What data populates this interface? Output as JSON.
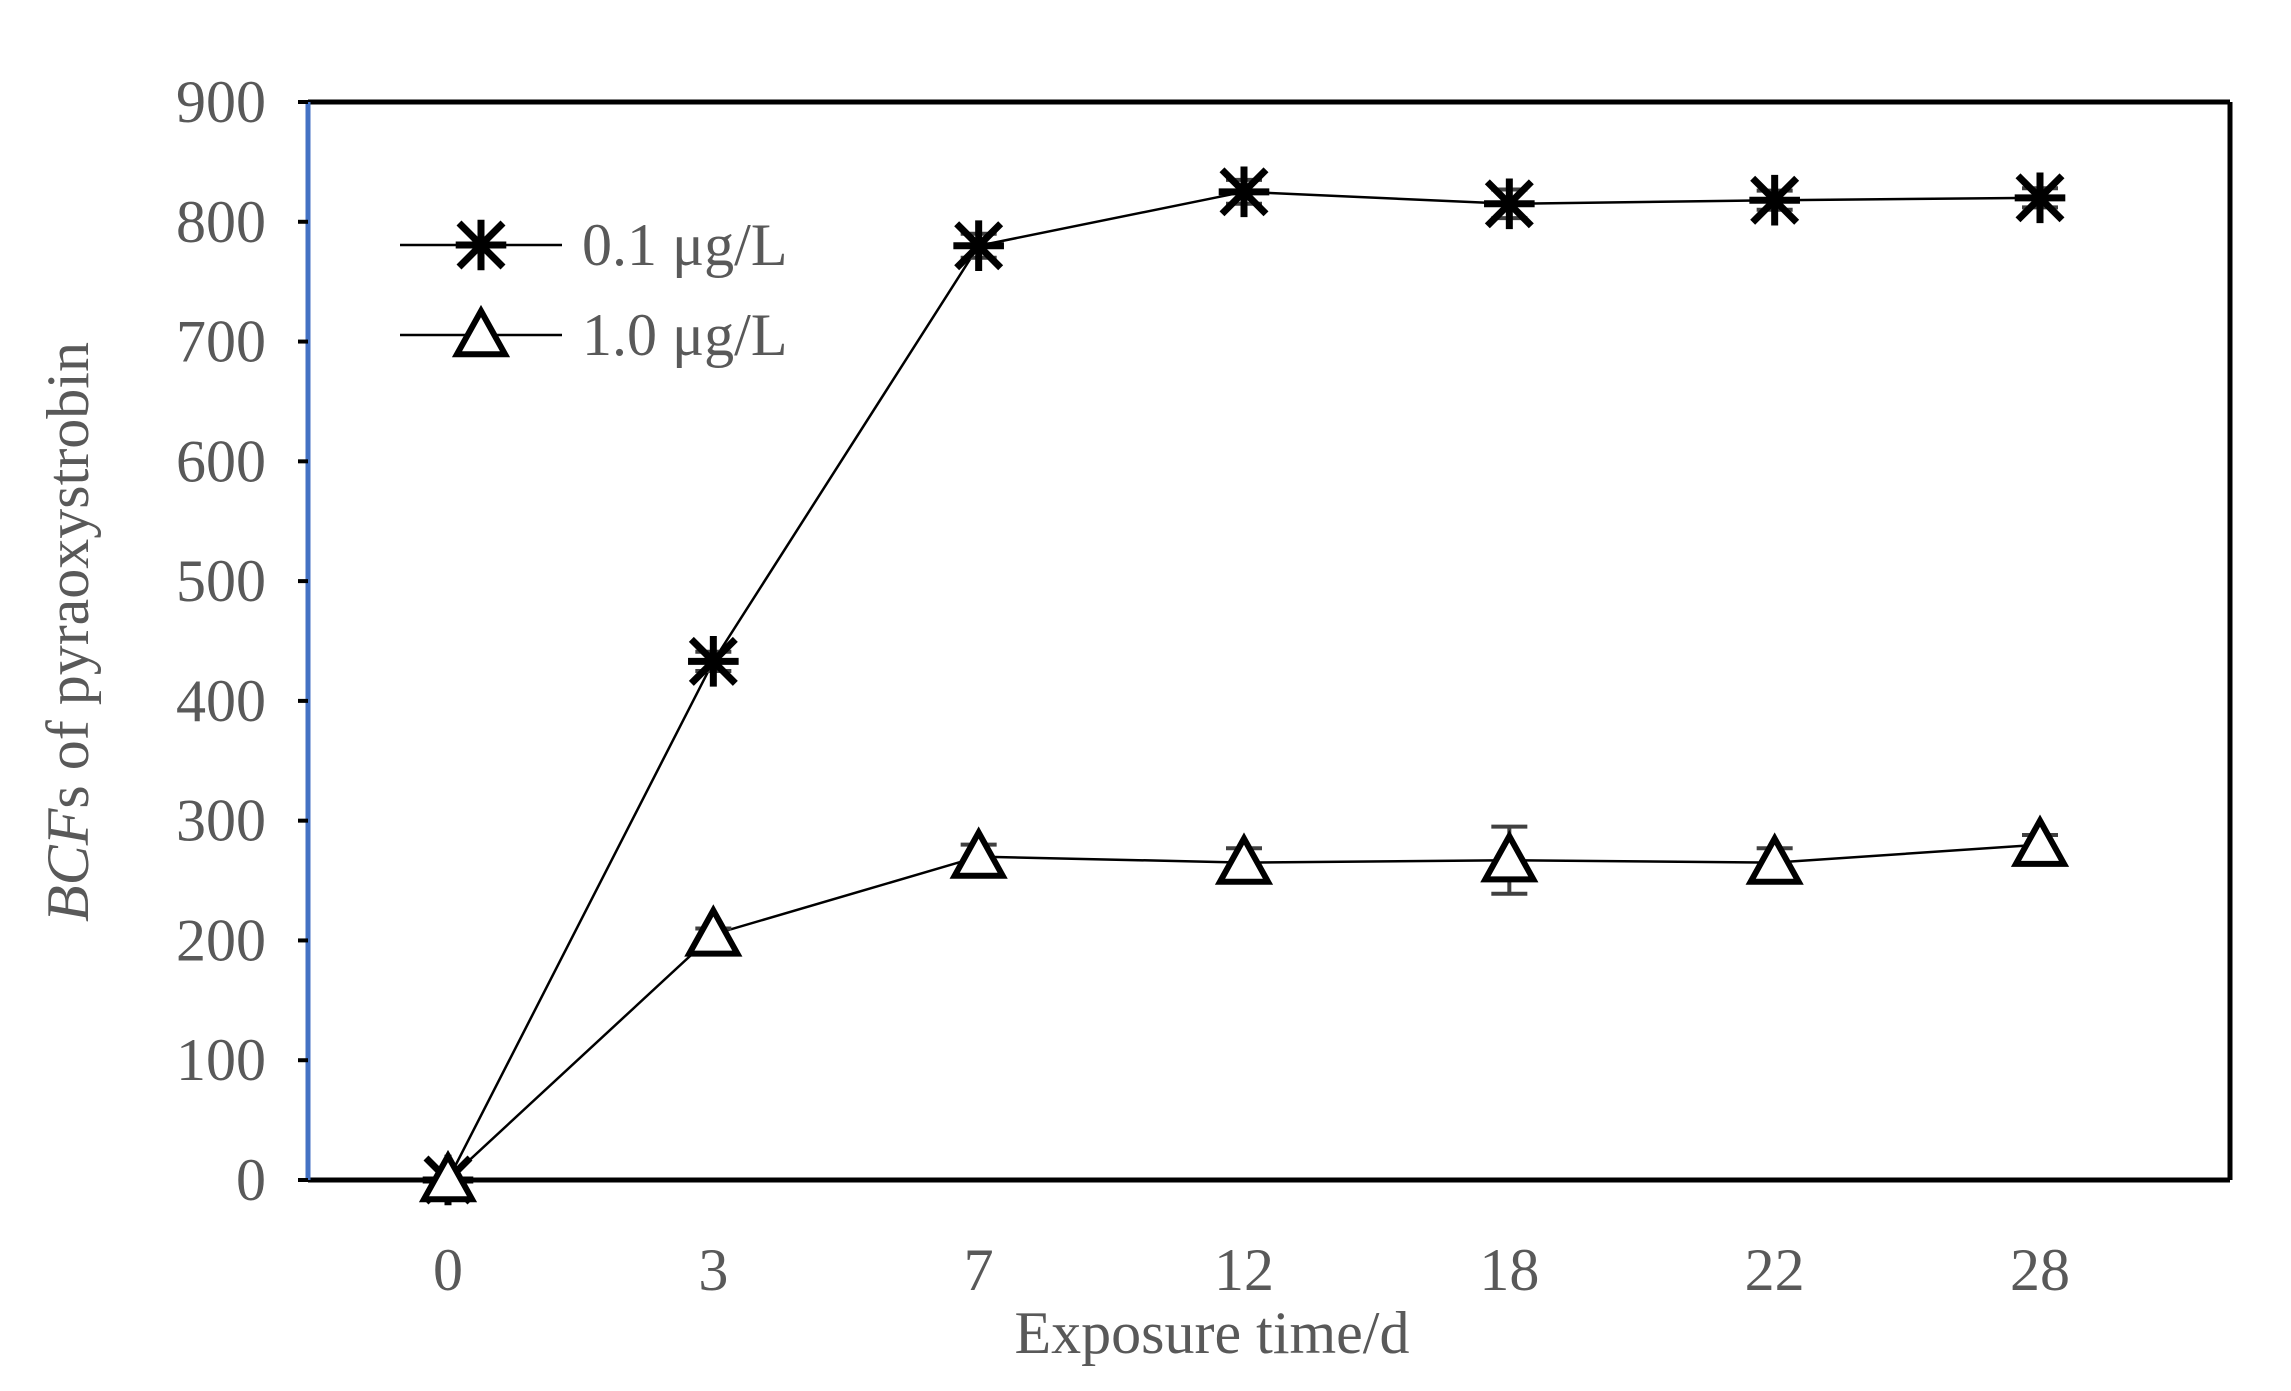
{
  "chart_data": {
    "type": "line",
    "xlabel": "Exposure time/d",
    "ylabel_italic": "BCF",
    "ylabel_rest": "s of pyraoxystrobin",
    "categories": [
      "0",
      "3",
      "7",
      "12",
      "18",
      "22",
      "28"
    ],
    "ylim": [
      0,
      900
    ],
    "yticks": [
      0,
      100,
      200,
      300,
      400,
      500,
      600,
      700,
      800,
      900
    ],
    "grid": false,
    "legend_position": "top-left",
    "series": [
      {
        "name": "0.1 μg/L",
        "marker": "asterisk",
        "values": [
          0,
          433,
          780,
          825,
          815,
          818,
          820
        ],
        "errors": [
          0,
          8,
          10,
          10,
          12,
          8,
          8
        ]
      },
      {
        "name": "1.0 μg/L",
        "marker": "triangle",
        "values": [
          0,
          205,
          270,
          265,
          267,
          265,
          280
        ],
        "errors": [
          0,
          5,
          10,
          12,
          28,
          12,
          8
        ]
      }
    ]
  },
  "colors": {
    "text": "#595959",
    "line": "#000000",
    "left_axis": "#4472C4",
    "error_bar": "#404040"
  }
}
